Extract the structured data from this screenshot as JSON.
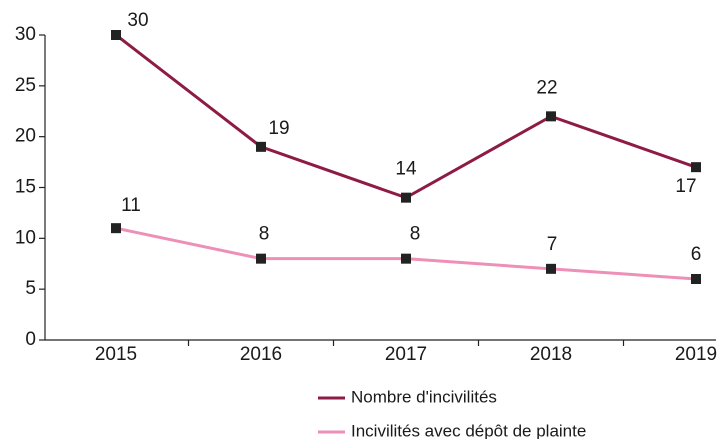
{
  "chart_data": {
    "type": "line",
    "categories": [
      "2015",
      "2016",
      "2017",
      "2018",
      "2019"
    ],
    "series": [
      {
        "name": "Nombre d'incivilités",
        "color": "#8e1b45",
        "values": [
          30,
          19,
          14,
          22,
          17
        ]
      },
      {
        "name": "Incivilités avec dépôt de plainte",
        "color": "#ee8fb8",
        "values": [
          11,
          8,
          8,
          7,
          6
        ]
      }
    ],
    "ylim": [
      0,
      30
    ],
    "yticks": [
      0,
      5,
      10,
      15,
      20,
      25,
      30
    ],
    "grid": false,
    "marker_color": "#222222"
  }
}
